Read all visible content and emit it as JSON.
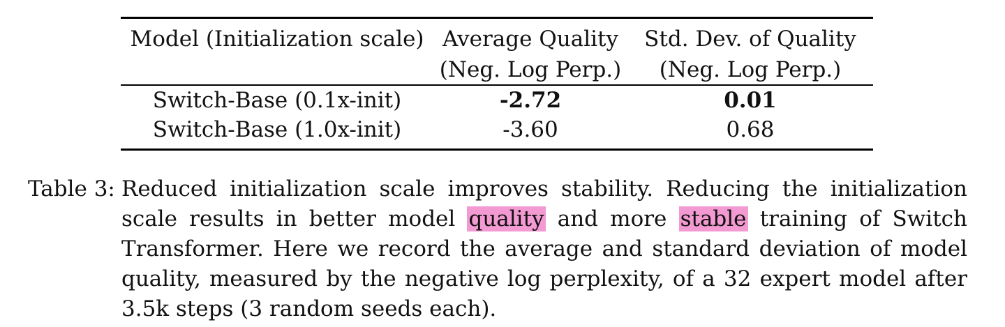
{
  "table": {
    "headers": {
      "col1": "Model (Initialization scale)",
      "col2_line1": "Average Quality",
      "col2_line2": "(Neg. Log Perp.)",
      "col3_line1": "Std. Dev. of Quality",
      "col3_line2": "(Neg. Log Perp.)"
    },
    "rows": [
      {
        "model": "Switch-Base (0.1x-init)",
        "avg_quality": "-2.72",
        "std_quality": "0.01",
        "bold": true
      },
      {
        "model": "Switch-Base (1.0x-init)",
        "avg_quality": "-3.60",
        "std_quality": "0.68",
        "bold": false
      }
    ]
  },
  "caption": {
    "label": "Table 3:",
    "seg1": "Reduced initialization scale improves stability.  Reducing the initialization scale results in better model ",
    "highlight1": "quality",
    "seg2": " and more ",
    "highlight2": "stable",
    "seg3": " training of Switch Transformer. Here we record the average and standard deviation of model quality, measured by the negative log perplexity, of a 32 expert model after 3.5k steps (3 random seeds each).",
    "highlight_color": "#f39ad2"
  }
}
